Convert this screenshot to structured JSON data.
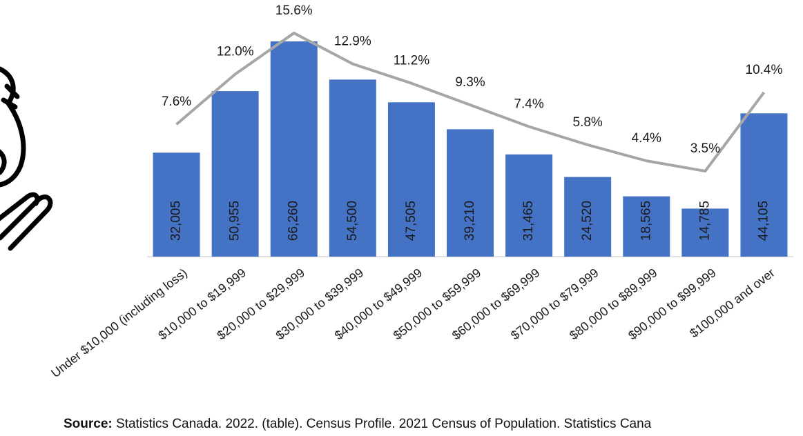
{
  "chart_data": {
    "type": "bar_line",
    "categories": [
      "Under $10,000 (including loss)",
      "$10,000 to $19,999",
      "$20,000 to $29,999",
      "$30,000 to $39,999",
      "$40,000 to $49,999",
      "$50,000 to $59,999",
      "$60,000 to $69,999",
      "$70,000 to $79,999",
      "$80,000 to $89,999",
      "$90,000 to $99,999",
      "$100,000 and over"
    ],
    "series": [
      {
        "type": "bar",
        "color": "#4472c4",
        "values": [
          32005,
          50955,
          66260,
          54500,
          47505,
          39210,
          31465,
          24520,
          18565,
          14785,
          44105
        ],
        "value_labels": [
          "32,005",
          "50,955",
          "66,260",
          "54,500",
          "47,505",
          "39,210",
          "31,465",
          "24,520",
          "18,565",
          "14,785",
          "44,105"
        ]
      },
      {
        "type": "line",
        "axis": "y2",
        "color": "#a6a6a6",
        "values": [
          7.6,
          12.0,
          15.6,
          12.9,
          11.2,
          9.3,
          7.4,
          5.8,
          4.4,
          3.5,
          10.4
        ],
        "value_labels": [
          "7.6%",
          "12.0%",
          "15.6%",
          "12.9%",
          "11.2%",
          "9.3%",
          "7.4%",
          "5.8%",
          "4.4%",
          "3.5%",
          "10.4%"
        ]
      }
    ],
    "ylim": [
      0,
      79000
    ],
    "y2lim": [
      -4,
      18.5
    ],
    "source_label": "Source:",
    "source_text": "Statistics Canada. 2022. (table). Census Profile. 2021 Census of Population. Statistics Cana"
  }
}
